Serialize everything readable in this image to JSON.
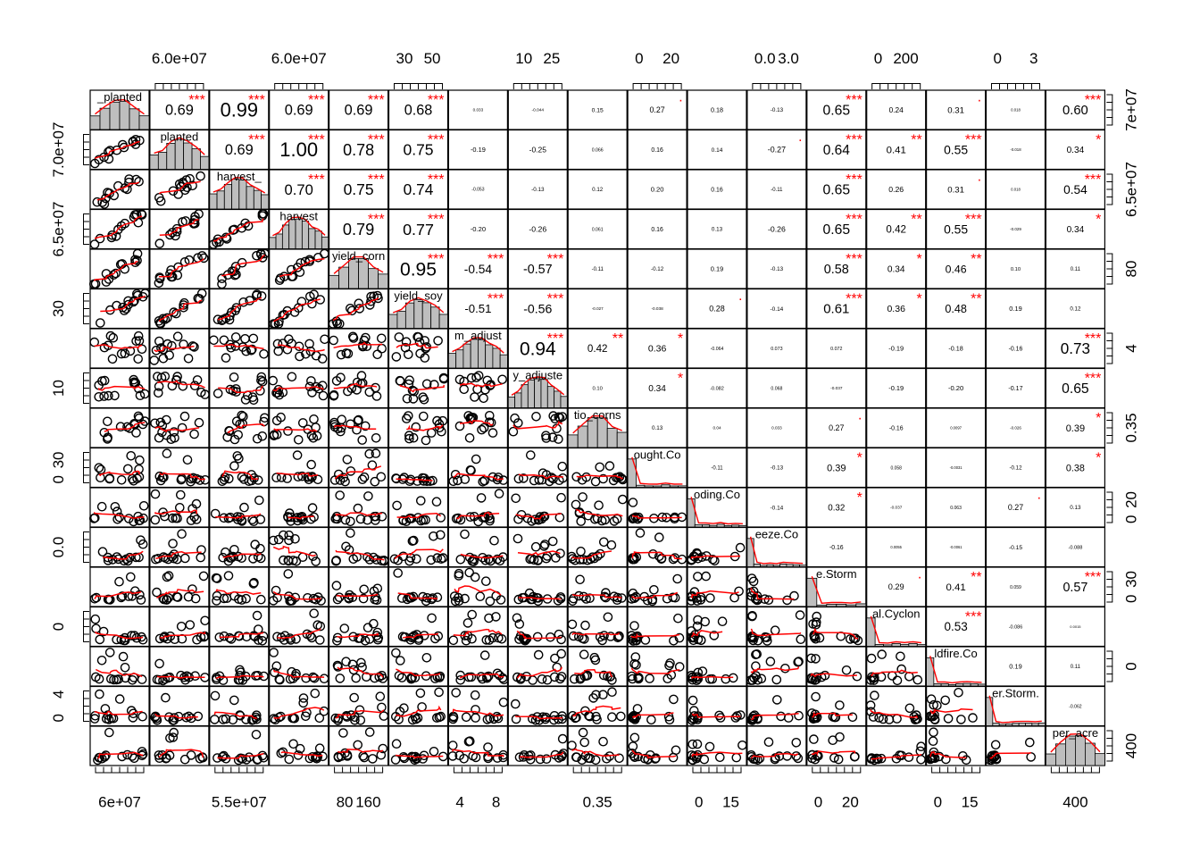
{
  "chart_data": {
    "type": "scatter_matrix",
    "title": "",
    "variable_labels": [
      "_planted",
      "planted",
      "harvest_",
      "harvest",
      "yield_corn",
      "yield_soy",
      "m_adjust",
      "y_adjuste",
      "tio_corns",
      "ought.Co",
      "oding.Co",
      "eeze.Co",
      "e.Storm",
      "al.Cyclon",
      "ldfire.Co",
      "er.Storm.",
      "per_acre"
    ],
    "axis_ticks": {
      "top": [
        {
          "col": 1,
          "labels": [
            "6.0e+07"
          ]
        },
        {
          "col": 3,
          "labels": [
            "6.0e+07"
          ]
        },
        {
          "col": 5,
          "labels": [
            "30",
            "50"
          ]
        },
        {
          "col": 7,
          "labels": [
            "10",
            "25"
          ]
        },
        {
          "col": 9,
          "labels": [
            "0",
            "20"
          ]
        },
        {
          "col": 11,
          "labels": [
            "0.0",
            "3.0"
          ]
        },
        {
          "col": 13,
          "labels": [
            "0",
            "200"
          ]
        },
        {
          "col": 15,
          "labels": [
            "0",
            "3"
          ]
        }
      ],
      "bottom": [
        {
          "col": 0,
          "labels": [
            "6e+07"
          ]
        },
        {
          "col": 2,
          "labels": [
            "5.5e+07"
          ]
        },
        {
          "col": 4,
          "labels": [
            "80",
            "160"
          ]
        },
        {
          "col": 6,
          "labels": [
            "4",
            "8"
          ]
        },
        {
          "col": 8,
          "labels": [
            "0.35"
          ]
        },
        {
          "col": 10,
          "labels": [
            "0",
            "15"
          ]
        },
        {
          "col": 12,
          "labels": [
            "0",
            "20"
          ]
        },
        {
          "col": 14,
          "labels": [
            "0",
            "15"
          ]
        },
        {
          "col": 16,
          "labels": [
            "400"
          ]
        }
      ],
      "left": [
        {
          "row": 1,
          "labels": [
            "7.0e+07"
          ]
        },
        {
          "row": 3,
          "labels": [
            "6.5e+07"
          ]
        },
        {
          "row": 5,
          "labels": [
            "30"
          ]
        },
        {
          "row": 7,
          "labels": [
            "10"
          ]
        },
        {
          "row": 9,
          "labels": [
            "0",
            "30"
          ]
        },
        {
          "row": 11,
          "labels": [
            "0.0"
          ]
        },
        {
          "row": 13,
          "labels": [
            "0"
          ]
        },
        {
          "row": 15,
          "labels": [
            "0",
            "4"
          ]
        }
      ],
      "right": [
        {
          "row": 0,
          "labels": [
            "7e+07"
          ]
        },
        {
          "row": 2,
          "labels": [
            "6.5e+07"
          ]
        },
        {
          "row": 4,
          "labels": [
            "80"
          ]
        },
        {
          "row": 6,
          "labels": [
            "4"
          ]
        },
        {
          "row": 8,
          "labels": [
            "0.35"
          ]
        },
        {
          "row": 10,
          "labels": [
            "0",
            "20"
          ]
        },
        {
          "row": 12,
          "labels": [
            "0",
            "30"
          ]
        },
        {
          "row": 14,
          "labels": [
            "0"
          ]
        },
        {
          "row": 16,
          "labels": [
            "400"
          ]
        }
      ]
    },
    "correlations": [
      [
        null,
        "0.69",
        "0.99",
        "0.69",
        "0.69",
        "0.68",
        "0.033",
        "-0.044",
        "0.15",
        "0.27",
        "0.18",
        "-0.13",
        "0.65",
        "0.24",
        "0.31",
        "0.018",
        "0.60"
      ],
      [
        null,
        null,
        "0.69",
        "1.00",
        "0.78",
        "0.75",
        "-0.19",
        "-0.25",
        "0.066",
        "0.16",
        "0.14",
        "-0.27",
        "0.64",
        "0.41",
        "0.55",
        "-0.018",
        "0.34"
      ],
      [
        null,
        null,
        null,
        "0.70",
        "0.75",
        "0.74",
        "-0.053",
        "-0.13",
        "0.12",
        "0.20",
        "0.16",
        "-0.11",
        "0.65",
        "0.26",
        "0.31",
        "0.018",
        "0.54"
      ],
      [
        null,
        null,
        null,
        null,
        "0.79",
        "0.77",
        "-0.20",
        "-0.26",
        "0.061",
        "0.16",
        "0.13",
        "-0.26",
        "0.65",
        "0.42",
        "0.55",
        "-0.029",
        "0.34"
      ],
      [
        null,
        null,
        null,
        null,
        null,
        "0.95",
        "-0.54",
        "-0.57",
        "-0.11",
        "-0.12",
        "0.19",
        "-0.13",
        "0.58",
        "0.34",
        "0.46",
        "0.10",
        "0.11"
      ],
      [
        null,
        null,
        null,
        null,
        null,
        null,
        "-0.51",
        "-0.56",
        "-0.027",
        "-0.038",
        "0.28",
        "-0.14",
        "0.61",
        "0.36",
        "0.48",
        "0.19",
        "0.12"
      ],
      [
        null,
        null,
        null,
        null,
        null,
        null,
        null,
        "0.94",
        "0.42",
        "0.36",
        "-0.064",
        "0.073",
        "0.072",
        "-0.19",
        "-0.18",
        "-0.16",
        "0.73"
      ],
      [
        null,
        null,
        null,
        null,
        null,
        null,
        null,
        null,
        "0.10",
        "0.34",
        "-0.082",
        "0.068",
        "-0.037",
        "-0.19",
        "-0.20",
        "-0.17",
        "0.65"
      ],
      [
        null,
        null,
        null,
        null,
        null,
        null,
        null,
        null,
        null,
        "0.13",
        "0.04",
        "0.033",
        "0.27",
        "-0.16",
        "0.0097",
        "-0.026",
        "0.39"
      ],
      [
        null,
        null,
        null,
        null,
        null,
        null,
        null,
        null,
        null,
        null,
        "-0.11",
        "-0.13",
        "0.39",
        "0.058",
        "-0.0031",
        "-0.12",
        "0.38"
      ],
      [
        null,
        null,
        null,
        null,
        null,
        null,
        null,
        null,
        null,
        null,
        null,
        "-0.14",
        "0.32",
        "-0.037",
        "0.063",
        "0.27",
        "0.13"
      ],
      [
        null,
        null,
        null,
        null,
        null,
        null,
        null,
        null,
        null,
        null,
        null,
        null,
        "-0.16",
        "0.0055",
        "-0.0061",
        "-0.15",
        "-0.088"
      ],
      [
        null,
        null,
        null,
        null,
        null,
        null,
        null,
        null,
        null,
        null,
        null,
        null,
        null,
        "0.29",
        "0.41",
        "0.059",
        "0.57"
      ],
      [
        null,
        null,
        null,
        null,
        null,
        null,
        null,
        null,
        null,
        null,
        null,
        null,
        null,
        null,
        "0.53",
        "-0.086",
        "0.0015"
      ],
      [
        null,
        null,
        null,
        null,
        null,
        null,
        null,
        null,
        null,
        null,
        null,
        null,
        null,
        null,
        null,
        "0.19",
        "0.11"
      ],
      [
        null,
        null,
        null,
        null,
        null,
        null,
        null,
        null,
        null,
        null,
        null,
        null,
        null,
        null,
        null,
        null,
        "-0.062"
      ],
      [
        null,
        null,
        null,
        null,
        null,
        null,
        null,
        null,
        null,
        null,
        null,
        null,
        null,
        null,
        null,
        null,
        null
      ]
    ],
    "significance": [
      [
        "",
        "***",
        "***",
        "***",
        "***",
        "***",
        "",
        "",
        "",
        "·",
        "",
        "",
        "***",
        "",
        "·",
        "",
        "***"
      ],
      [
        "",
        "",
        "***",
        "***",
        "***",
        "***",
        "",
        "",
        "",
        "",
        "",
        "·",
        "***",
        "**",
        "***",
        "",
        "*"
      ],
      [
        "",
        "",
        "",
        "***",
        "***",
        "***",
        "",
        "",
        "",
        "",
        "",
        "",
        "***",
        "",
        "·",
        "",
        "***"
      ],
      [
        "",
        "",
        "",
        "",
        "***",
        "***",
        "",
        "",
        "",
        "",
        "",
        "",
        "***",
        "**",
        "***",
        "",
        "*"
      ],
      [
        "",
        "",
        "",
        "",
        "",
        "***",
        "***",
        "***",
        "",
        "",
        "",
        "",
        "***",
        "*",
        "**",
        "",
        ""
      ],
      [
        "",
        "",
        "",
        "",
        "",
        "",
        "***",
        "***",
        "",
        "",
        "·",
        "",
        "***",
        "*",
        "**",
        "",
        ""
      ],
      [
        "",
        "",
        "",
        "",
        "",
        "",
        "",
        "***",
        "**",
        "*",
        "",
        "",
        "",
        "",
        "",
        "",
        "***"
      ],
      [
        "",
        "",
        "",
        "",
        "",
        "",
        "",
        "",
        "",
        "*",
        "",
        "",
        "",
        "",
        "",
        "",
        "***"
      ],
      [
        "",
        "",
        "",
        "",
        "",
        "",
        "",
        "",
        "",
        "",
        "",
        "",
        "·",
        "",
        "",
        "",
        "*"
      ],
      [
        "",
        "",
        "",
        "",
        "",
        "",
        "",
        "",
        "",
        "",
        "",
        "",
        "*",
        "",
        "",
        "",
        "*"
      ],
      [
        "",
        "",
        "",
        "",
        "",
        "",
        "",
        "",
        "",
        "",
        "",
        "",
        "*",
        "",
        "",
        "·",
        ""
      ],
      [
        "",
        "",
        "",
        "",
        "",
        "",
        "",
        "",
        "",
        "",
        "",
        "",
        "",
        "",
        "",
        "",
        ""
      ],
      [
        "",
        "",
        "",
        "",
        "",
        "",
        "",
        "",
        "",
        "",
        "",
        "",
        "",
        "·",
        "**",
        "",
        "***"
      ],
      [
        "",
        "",
        "",
        "",
        "",
        "",
        "",
        "",
        "",
        "",
        "",
        "",
        "",
        "",
        "***",
        "",
        ""
      ],
      [
        "",
        "",
        "",
        "",
        "",
        "",
        "",
        "",
        "",
        "",
        "",
        "",
        "",
        "",
        "",
        "",
        ""
      ],
      [
        "",
        "",
        "",
        "",
        "",
        "",
        "",
        "",
        "",
        "",
        "",
        "",
        "",
        "",
        "",
        "",
        ""
      ],
      [
        "",
        "",
        "",
        "",
        "",
        "",
        "",
        "",
        "",
        "",
        "",
        "",
        "",
        "",
        "",
        "",
        ""
      ]
    ],
    "colors": {
      "loess": "#ff0000",
      "stars": "#ff0000",
      "hist_fill": "#bebebe",
      "points": "#000000"
    }
  }
}
